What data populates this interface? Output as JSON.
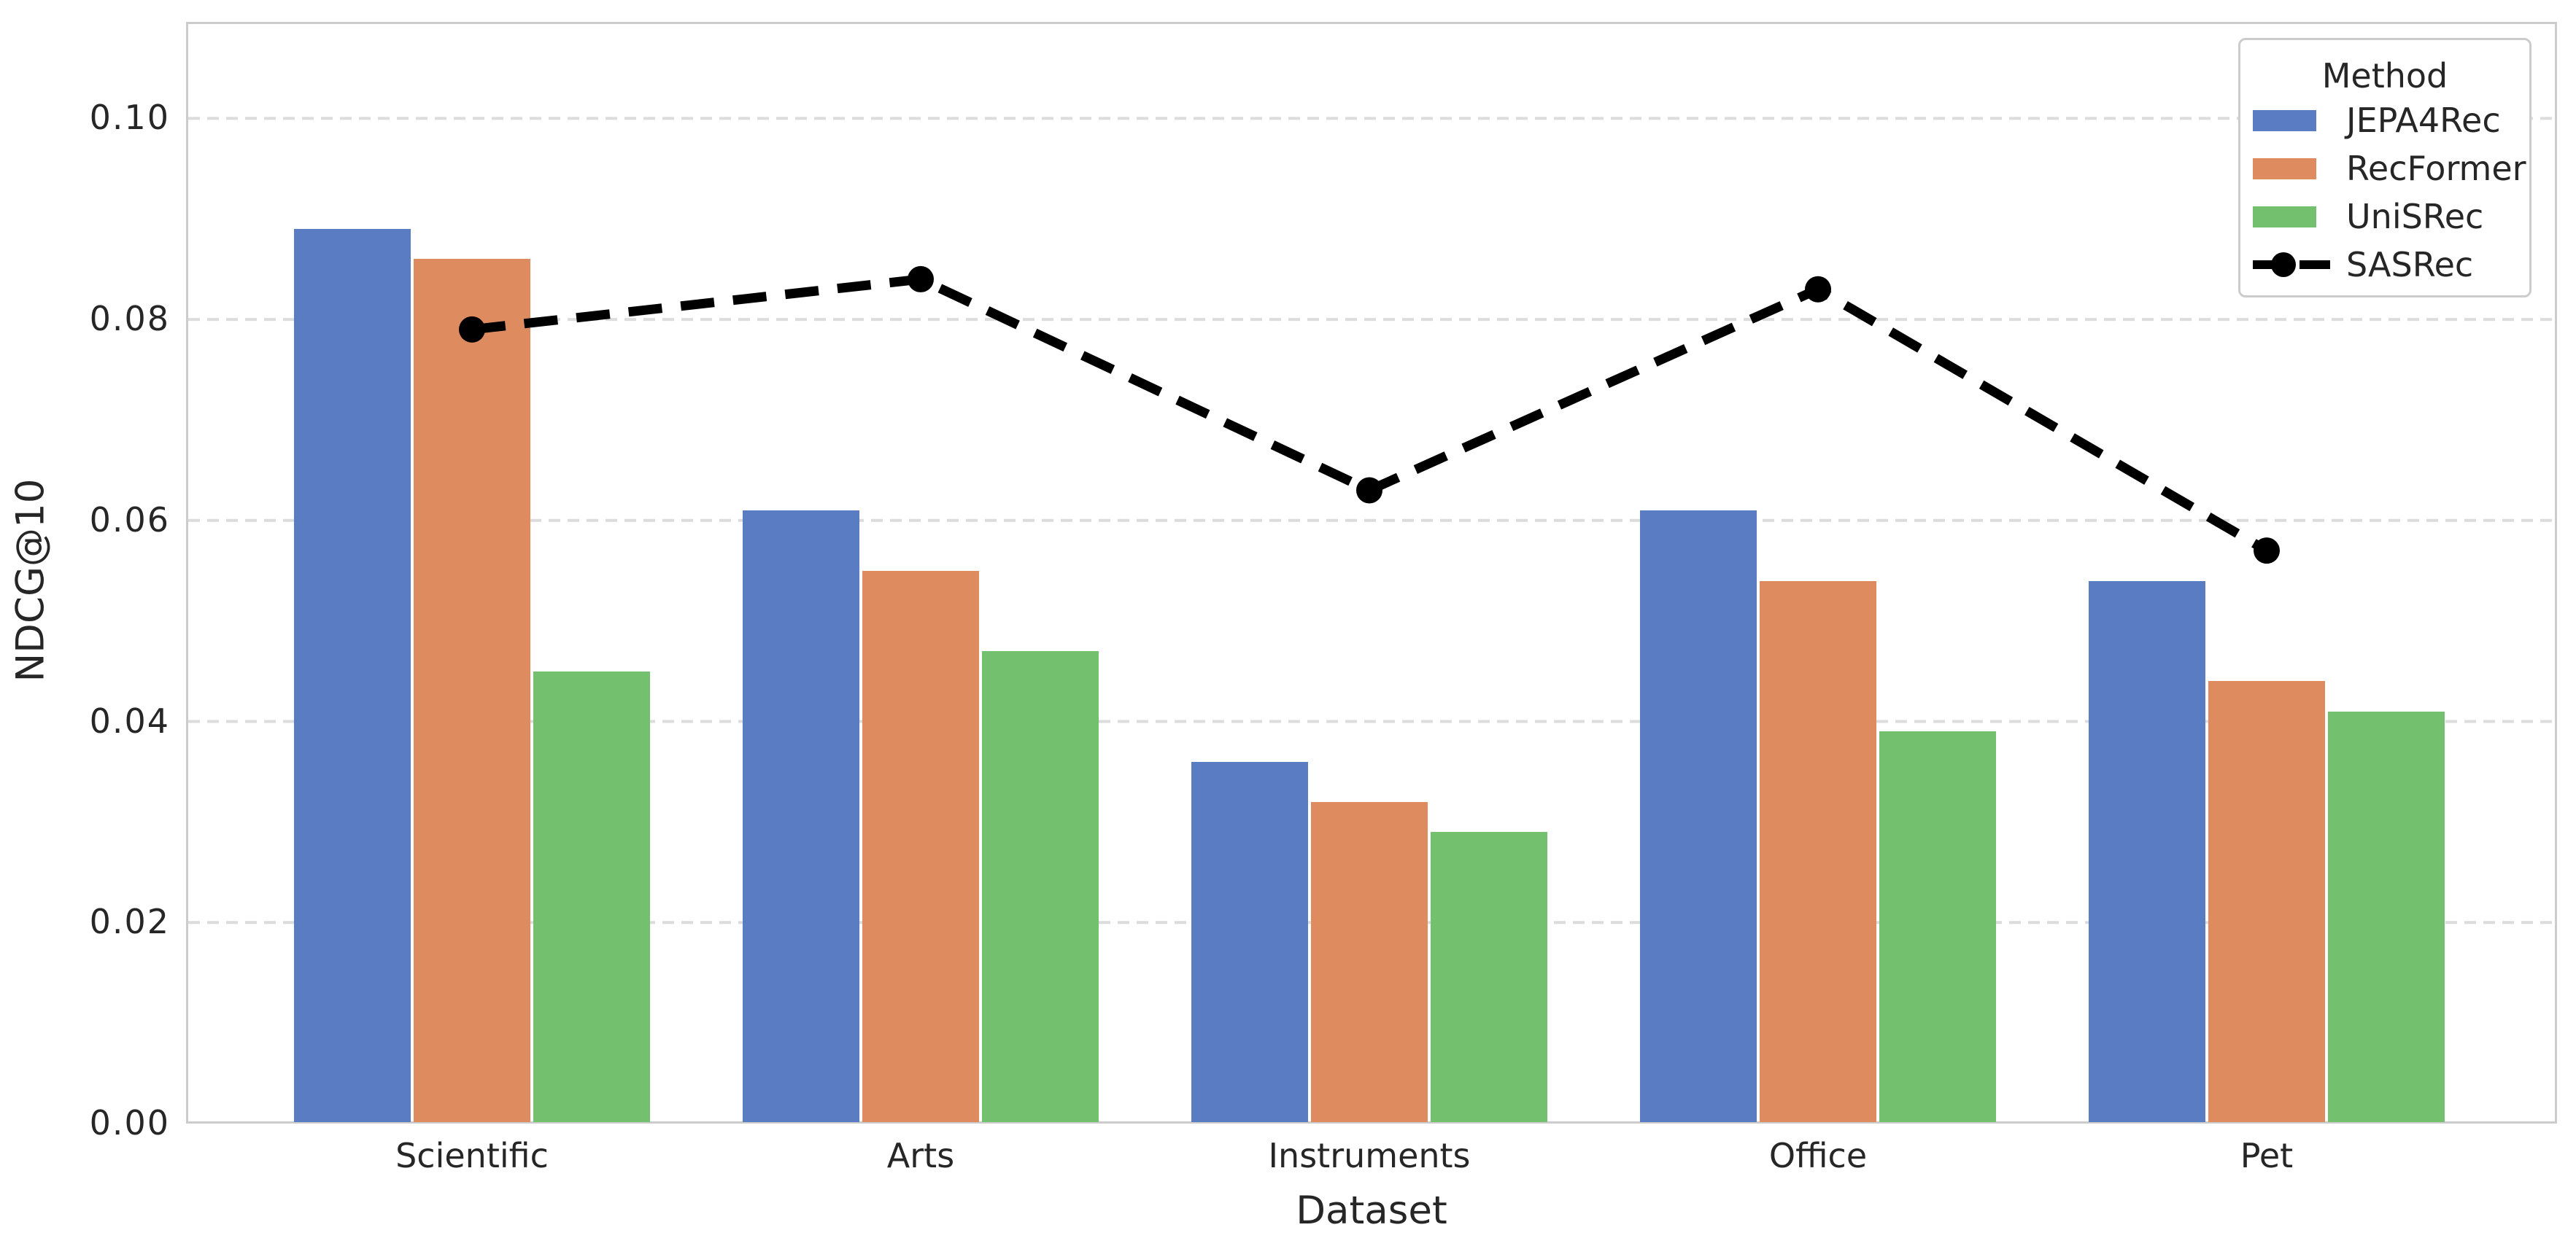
{
  "figure": {
    "background": "#ffffff",
    "text_color": "#262626",
    "spine_color": "#cccccc",
    "gridline_color": "#dcdcdc"
  },
  "chart_data": {
    "type": "bar",
    "title": "",
    "xlabel": "Dataset",
    "ylabel": "NDCG@10",
    "categories": [
      "Scientific",
      "Arts",
      "Instruments",
      "Office",
      "Pet"
    ],
    "bar_series": [
      {
        "name": "JEPA4Rec",
        "color": "#5a7cc2",
        "values": [
          0.089,
          0.061,
          0.036,
          0.061,
          0.054
        ]
      },
      {
        "name": "RecFormer",
        "color": "#de8b60",
        "values": [
          0.086,
          0.055,
          0.032,
          0.054,
          0.044
        ]
      },
      {
        "name": "UniSRec",
        "color": "#73c06f",
        "values": [
          0.045,
          0.047,
          0.029,
          0.039,
          0.041
        ]
      }
    ],
    "line_series": [
      {
        "name": "SASRec",
        "color": "#000000",
        "style": "dashed",
        "marker": "circle",
        "values": [
          0.079,
          0.084,
          0.063,
          0.083,
          0.057
        ]
      }
    ],
    "ylim": [
      0,
      0.1096
    ],
    "yticks": [
      {
        "value": 0.0,
        "label": "0.00"
      },
      {
        "value": 0.02,
        "label": "0.02"
      },
      {
        "value": 0.04,
        "label": "0.04"
      },
      {
        "value": 0.06,
        "label": "0.06"
      },
      {
        "value": 0.08,
        "label": "0.08"
      },
      {
        "value": 0.1,
        "label": "0.10"
      }
    ],
    "grid": "horizontal-dashed",
    "legend": {
      "title": "Method",
      "position": "upper right",
      "entries": [
        "JEPA4Rec",
        "RecFormer",
        "UniSRec",
        "SASRec"
      ]
    }
  }
}
